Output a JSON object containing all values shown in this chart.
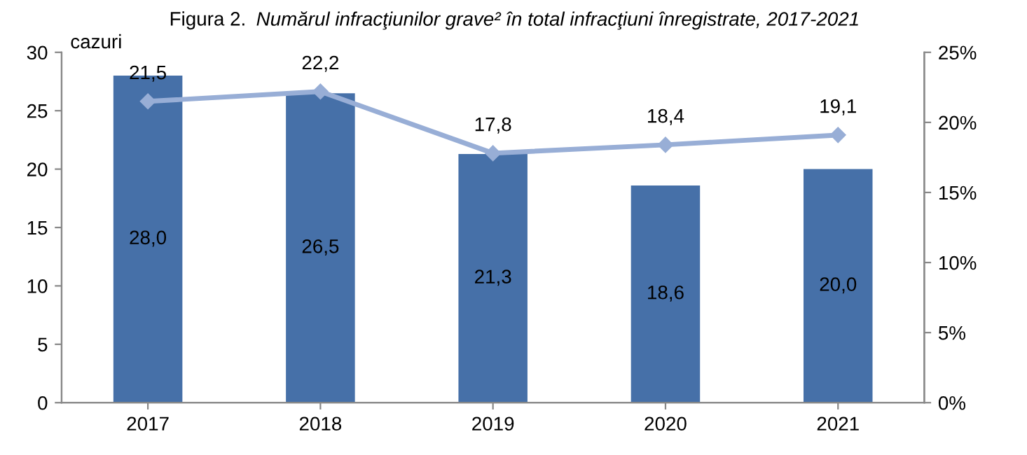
{
  "chart_data": {
    "type": "bar",
    "title": "Figura 2. Numărul infracţiunilor grave² în total infracţiuni înregistrate, 2017-2021",
    "ylabel": "cazuri",
    "categories": [
      "2017",
      "2018",
      "2019",
      "2020",
      "2021"
    ],
    "series": [
      {
        "color": "#4670a8",
        "values": [
          28.0,
          26.5,
          21.3,
          18.6,
          20.0
        ],
        "value_labels": [
          "28,0",
          "26,5",
          "21,3",
          "18,6",
          "20,0"
        ]
      },
      {
        "type": "line",
        "axis": "y2",
        "color": "#98aed6",
        "marker": "diamond",
        "values": [
          21.5,
          22.2,
          17.8,
          18.4,
          19.1
        ],
        "value_labels": [
          "21,5",
          "22,2",
          "17,8",
          "18,4",
          "19,1"
        ]
      }
    ],
    "ylim": [
      0,
      30
    ],
    "yticks": [
      0,
      5,
      10,
      15,
      20,
      25,
      30
    ],
    "y2lim": [
      0,
      25
    ],
    "y2ticks": [
      {
        "value": 0,
        "label": "0%"
      },
      {
        "value": 5,
        "label": "5%"
      },
      {
        "value": 10,
        "label": "10%"
      },
      {
        "value": 15,
        "label": "15%"
      },
      {
        "value": 20,
        "label": "20%"
      },
      {
        "value": 25,
        "label": "25%"
      }
    ],
    "grid": false,
    "legend": false
  }
}
